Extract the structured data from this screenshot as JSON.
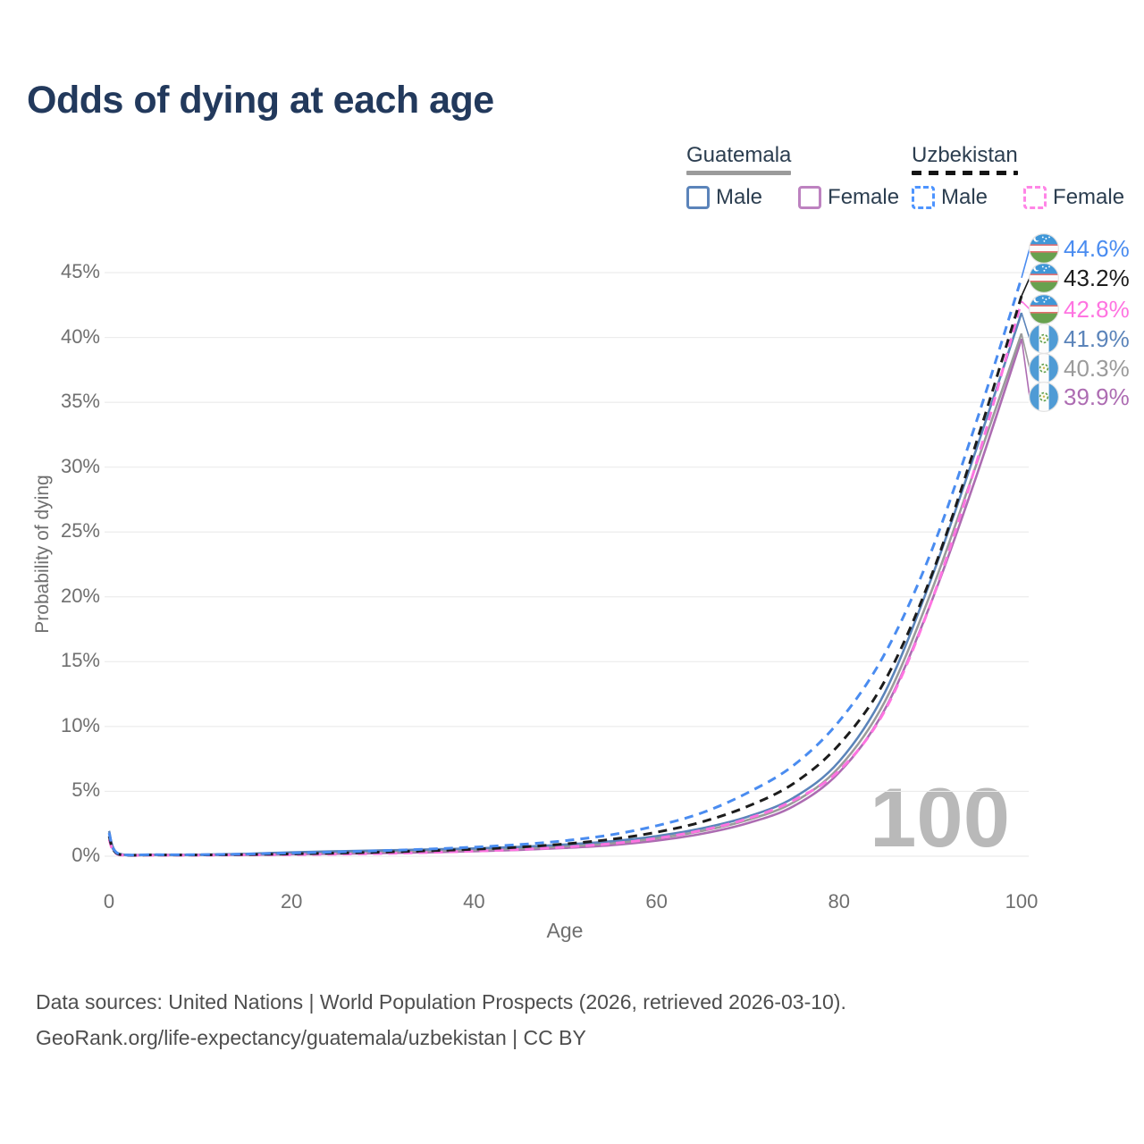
{
  "title": "Odds of dying at each age",
  "legend": {
    "groups": [
      {
        "name": "Guatemala",
        "line_style": "solid",
        "underline_color": "#9b9b9b",
        "items": [
          {
            "label": "Male",
            "color": "#5b84ba"
          },
          {
            "label": "Female",
            "color": "#bd82c0"
          }
        ]
      },
      {
        "name": "Uzbekistan",
        "line_style": "dashed",
        "underline_color": "#141414",
        "items": [
          {
            "label": "Male",
            "color": "#4d94ff"
          },
          {
            "label": "Female",
            "color": "#ff85e6"
          }
        ]
      }
    ]
  },
  "chart_data": {
    "type": "line",
    "title": "Odds of dying at each age",
    "xlabel": "Age",
    "ylabel": "Probability of dying",
    "xlim": [
      0,
      100
    ],
    "ylim": [
      0,
      47
    ],
    "grid": true,
    "legend_position": "top-right",
    "x_ticks": [
      0,
      20,
      40,
      60,
      80,
      100
    ],
    "y_ticks_percent": [
      0,
      5,
      10,
      15,
      20,
      25,
      30,
      35,
      40,
      45
    ],
    "hover_age_label": "100",
    "ages": [
      0,
      1,
      5,
      10,
      15,
      20,
      25,
      30,
      35,
      40,
      45,
      50,
      55,
      60,
      65,
      70,
      75,
      80,
      85,
      90,
      95,
      100
    ],
    "series": [
      {
        "name": "Uzbekistan Male",
        "country": "Uzbekistan",
        "sex": "male",
        "flag": "uzbekistan",
        "line": "dashed",
        "color": "#4a8cf0",
        "end_label": "44.6%",
        "end_value": 44.6,
        "values": [
          1.8,
          0.2,
          0.12,
          0.12,
          0.17,
          0.25,
          0.33,
          0.43,
          0.55,
          0.7,
          0.9,
          1.2,
          1.65,
          2.35,
          3.35,
          4.9,
          7.0,
          10.4,
          15.6,
          23.3,
          33.4,
          44.6
        ]
      },
      {
        "name": "Uzbekistan Both sexes",
        "country": "Uzbekistan",
        "sex": "both",
        "flag": "uzbekistan",
        "line": "dashed",
        "color": "#1c1c1c",
        "end_label": "43.2%",
        "end_value": 43.2,
        "values": [
          1.55,
          0.16,
          0.1,
          0.1,
          0.13,
          0.18,
          0.24,
          0.32,
          0.42,
          0.54,
          0.7,
          0.95,
          1.3,
          1.85,
          2.65,
          3.85,
          5.6,
          8.6,
          13.5,
          21.4,
          31.8,
          43.2
        ]
      },
      {
        "name": "Uzbekistan Female",
        "country": "Uzbekistan",
        "sex": "female",
        "flag": "uzbekistan",
        "line": "dashed",
        "color": "#ff74e1",
        "end_label": "42.8%",
        "end_value": 42.8,
        "values": [
          1.3,
          0.13,
          0.08,
          0.08,
          0.1,
          0.12,
          0.16,
          0.21,
          0.29,
          0.39,
          0.52,
          0.7,
          0.97,
          1.38,
          2.0,
          2.9,
          4.3,
          6.6,
          11.2,
          19.4,
          30.2,
          42.8
        ]
      },
      {
        "name": "Guatemala Male",
        "country": "Guatemala",
        "sex": "male",
        "flag": "guatemala",
        "line": "solid",
        "color": "#5b84ba",
        "end_label": "41.9%",
        "end_value": 41.9,
        "values": [
          1.95,
          0.22,
          0.12,
          0.12,
          0.18,
          0.3,
          0.38,
          0.45,
          0.52,
          0.6,
          0.72,
          0.9,
          1.15,
          1.55,
          2.15,
          3.05,
          4.5,
          7.3,
          12.6,
          21.2,
          31.3,
          41.9
        ]
      },
      {
        "name": "Guatemala Both sexes",
        "country": "Guatemala",
        "sex": "both",
        "flag": "guatemala",
        "line": "solid",
        "color": "#9b9b9b",
        "end_label": "40.3%",
        "end_value": 40.3,
        "values": [
          1.75,
          0.19,
          0.1,
          0.1,
          0.15,
          0.23,
          0.29,
          0.35,
          0.41,
          0.49,
          0.6,
          0.77,
          1.0,
          1.38,
          1.95,
          2.8,
          4.15,
          6.85,
          11.9,
          20.2,
          30.1,
          40.3
        ]
      },
      {
        "name": "Guatemala Female",
        "country": "Guatemala",
        "sex": "female",
        "flag": "guatemala",
        "line": "solid",
        "color": "#ad6cb2",
        "end_label": "39.9%",
        "end_value": 39.9,
        "values": [
          1.55,
          0.16,
          0.09,
          0.09,
          0.11,
          0.15,
          0.19,
          0.24,
          0.3,
          0.38,
          0.49,
          0.64,
          0.85,
          1.2,
          1.73,
          2.55,
          3.85,
          6.45,
          11.3,
          19.4,
          29.2,
          39.9
        ]
      }
    ]
  },
  "footer": {
    "line1": "Data sources: United Nations | World Population Prospects (2026, retrieved 2026-03-10).",
    "line2": "GeoRank.org/life-expectancy/guatemala/uzbekistan | CC BY"
  }
}
